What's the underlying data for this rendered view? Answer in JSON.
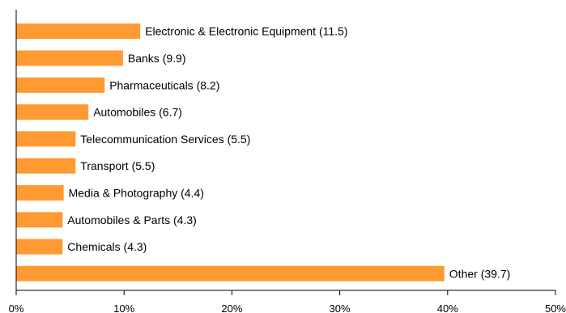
{
  "chart_data": {
    "type": "bar",
    "orientation": "horizontal",
    "title": "",
    "xlabel": "",
    "ylabel": "",
    "xlim": [
      0,
      50
    ],
    "x_ticks": [
      0,
      10,
      20,
      30,
      40,
      50
    ],
    "x_tick_labels": [
      "0%",
      "10%",
      "20%",
      "30%",
      "40%",
      "50%"
    ],
    "grid": false,
    "legend": "none",
    "bar_color": "#ff9a33",
    "categories": [
      "Electronic & Electronic Equipment",
      "Banks",
      "Pharmaceuticals",
      "Automobiles",
      "Telecommunication Services",
      "Transport",
      "Media & Photography",
      "Automobiles & Parts",
      "Chemicals",
      "Other"
    ],
    "values": [
      11.5,
      9.9,
      8.2,
      6.7,
      5.5,
      5.5,
      4.4,
      4.3,
      4.3,
      39.7
    ],
    "data_labels": [
      "Electronic & Electronic Equipment (11.5)",
      "Banks (9.9)",
      "Pharmaceuticals (8.2)",
      "Automobiles (6.7)",
      "Telecommunication Services (5.5)",
      "Transport (5.5)",
      "Media & Photography (4.4)",
      "Automobiles & Parts (4.3)",
      "Chemicals (4.3)",
      "Other (39.7)"
    ]
  }
}
